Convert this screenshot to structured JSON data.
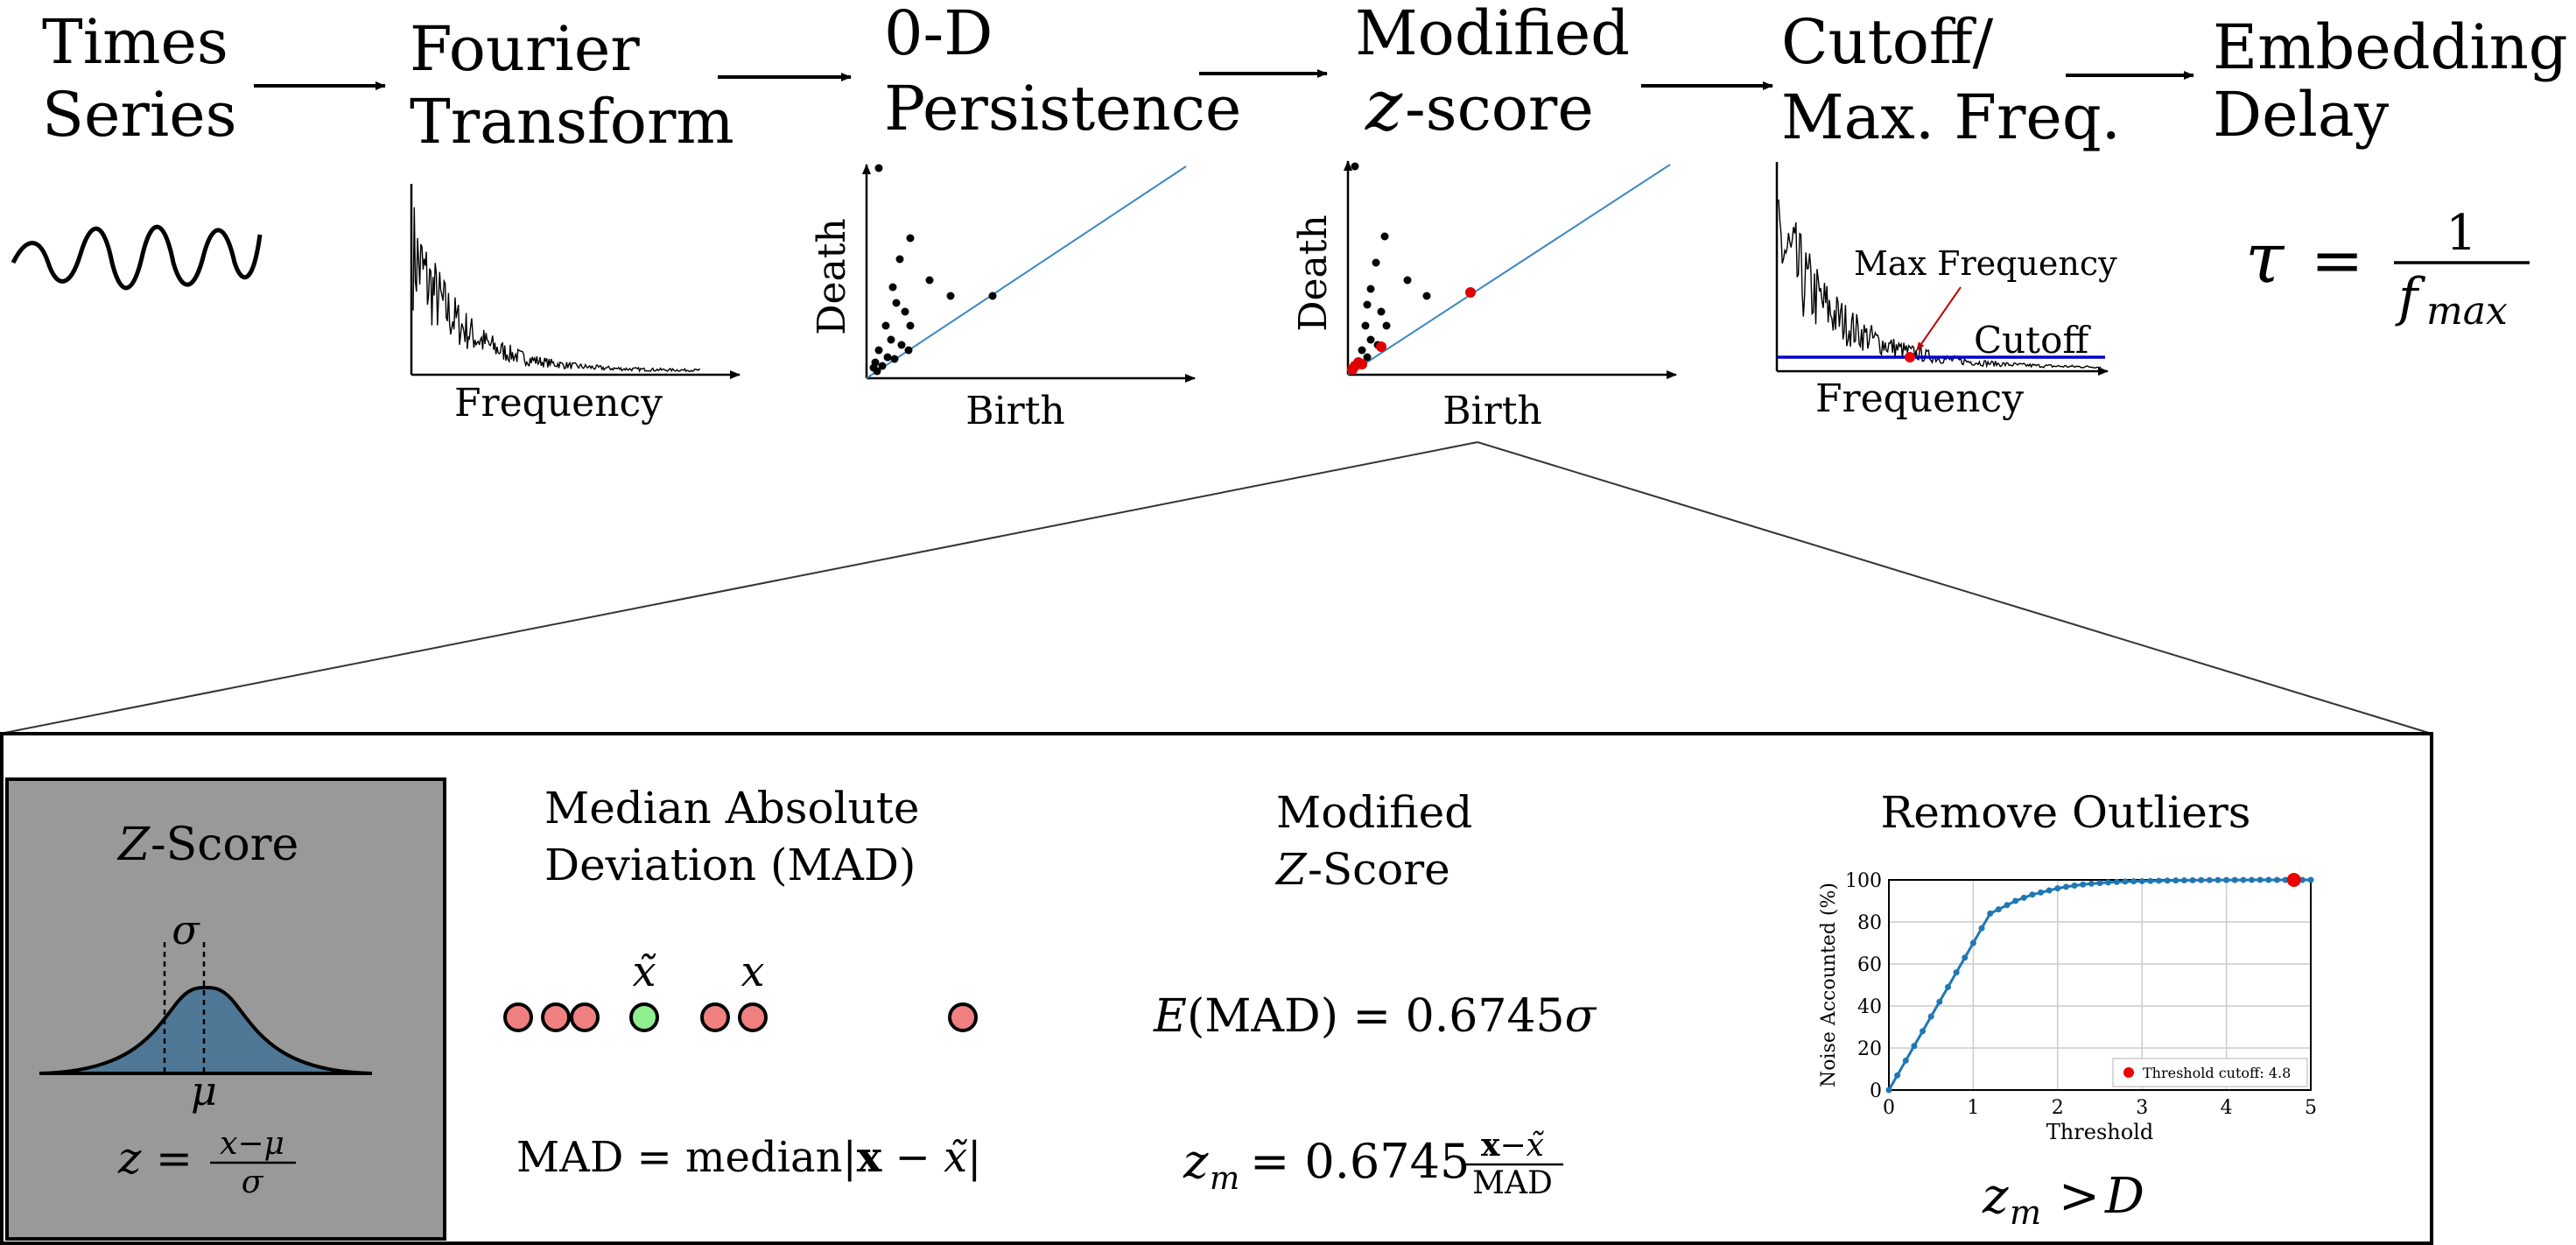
{
  "pipeline": {
    "steps": [
      {
        "line1": "Times",
        "line2": "Series"
      },
      {
        "line1": "Fourier",
        "line2": "Transform"
      },
      {
        "line1": "0-D",
        "line2": "Persistence"
      },
      {
        "line1": "Modified",
        "line2_var": "z",
        "line2": "-score"
      },
      {
        "line1": "Cutoff/",
        "line2": "Max. Freq."
      },
      {
        "line1": "Embedding",
        "line2": "Delay"
      }
    ],
    "fourier_plot": {
      "xlabel": "Frequency"
    },
    "persistence_plot": {
      "xlabel": "Birth",
      "ylabel": "Death"
    },
    "zscore_plot": {
      "xlabel": "Birth",
      "ylabel": "Death"
    },
    "cutoff_plot": {
      "xlabel": "Frequency",
      "max_freq_label": "Max Frequency",
      "cutoff_label": "Cutoff",
      "max_freq_color": "#c00000",
      "cutoff_color": "#0000c8"
    },
    "embedding_formula": {
      "lhs": "τ",
      "eq": "=",
      "numerator": "1",
      "denominator_var": "f",
      "denominator_sub": "max"
    }
  },
  "detail": {
    "zscore_panel": {
      "title_var": "Z",
      "title_rest": "-Score",
      "sigma": "σ",
      "mu": "μ",
      "formula_lhs": "z",
      "formula_eq": "=",
      "formula_num": "x−μ",
      "formula_den": "σ",
      "panel_color": "#999999",
      "curve_fill": "#4f7796"
    },
    "mad": {
      "title1": "Median Absolute",
      "title2": "Deviation (MAD)",
      "median_label": "x̃",
      "x_label": "x",
      "formula": "MAD = median|x − x̃|",
      "formula_parts": {
        "lhs": "MAD = median|",
        "bold_x": "x",
        "rest": " − x̃|"
      },
      "dot_red": "#f08080",
      "dot_green": "#90ee90"
    },
    "modified_z": {
      "title1": "Modified",
      "title2_var": "Z",
      "title2_rest": "-Score",
      "expectation": {
        "E": "E",
        "body": "(MAD) = 0.6745",
        "sigma": "σ"
      },
      "formula": {
        "lhs_var": "z",
        "lhs_sub": "m",
        "eq": "= 0.6745",
        "num_bold": "x",
        "num_rest": "−x̃",
        "den": "MAD"
      }
    },
    "outliers": {
      "title": "Remove Outliers",
      "condition": {
        "var": "z",
        "sub": "m",
        "op": ">",
        "rhs": "D"
      }
    }
  },
  "chart_data": {
    "type": "line",
    "title": "",
    "xlabel": "Threshold",
    "ylabel": "Noise Accounted (%)",
    "xlim": [
      0,
      5
    ],
    "ylim": [
      0,
      100
    ],
    "x_ticks": [
      "0",
      "1",
      "2",
      "3",
      "4",
      "5"
    ],
    "y_ticks": [
      "0",
      "20",
      "40",
      "60",
      "80",
      "100"
    ],
    "grid": true,
    "legend": "lower-right",
    "series": [
      {
        "color": "#1f77b4",
        "x": [
          0,
          0.1,
          0.2,
          0.3,
          0.4,
          0.5,
          0.6,
          0.7,
          0.8,
          0.9,
          1.0,
          1.1,
          1.2,
          1.3,
          1.4,
          1.5,
          1.6,
          1.7,
          1.8,
          1.9,
          2.0,
          2.1,
          2.2,
          2.3,
          2.4,
          2.5,
          2.6,
          2.7,
          2.8,
          2.9,
          3.0,
          3.1,
          3.2,
          3.3,
          3.4,
          3.5,
          3.6,
          3.7,
          3.8,
          3.9,
          4.0,
          4.1,
          4.2,
          4.3,
          4.4,
          4.5,
          4.6,
          4.7,
          4.8,
          4.9,
          5.0
        ],
        "y": [
          0,
          7,
          14,
          21,
          28,
          35,
          42,
          49,
          56,
          63,
          70,
          77,
          84,
          86,
          88,
          90,
          91.5,
          93,
          94,
          95,
          96,
          96.7,
          97.3,
          97.8,
          98.2,
          98.5,
          98.8,
          99.0,
          99.2,
          99.3,
          99.4,
          99.5,
          99.6,
          99.7,
          99.75,
          99.8,
          99.85,
          99.9,
          99.92,
          99.94,
          99.95,
          99.96,
          99.97,
          99.98,
          99.99,
          100,
          100,
          100,
          100,
          100,
          100
        ]
      }
    ],
    "highlight": {
      "label": "Threshold cutoff: 4.8",
      "x": 4.8,
      "y": 100,
      "color": "#ee0000"
    }
  }
}
